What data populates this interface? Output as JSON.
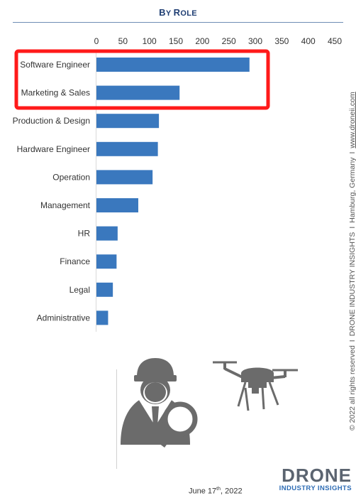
{
  "header": {
    "title_first": "B",
    "title_rest_1": "Y ",
    "title_r": "R",
    "title_rest_2": "OLE"
  },
  "chart_data": {
    "type": "bar",
    "orientation": "horizontal",
    "title": "By Role",
    "categories": [
      "Software Engineer",
      "Marketing & Sales",
      "Production & Design",
      "Hardware Engineer",
      "Operation",
      "Management",
      "HR",
      "Finance",
      "Legal",
      "Administrative"
    ],
    "values": [
      289,
      157,
      118,
      116,
      106,
      79,
      40,
      38,
      31,
      22
    ],
    "xlim": [
      0,
      450
    ],
    "xticks": [
      "0",
      "50",
      "100",
      "150",
      "200",
      "250",
      "300",
      "350",
      "400",
      "450"
    ],
    "grid": false,
    "bar_color": "#3a78be",
    "highlight": {
      "categories": [
        "Software Engineer",
        "Marketing & Sales"
      ],
      "color": "#ff1a1a"
    }
  },
  "sidebar_note": {
    "copyright": "© 2022 all rights reserved",
    "company": "DRONE INDUSTRY INSIGHTS",
    "location": "Hamburg, Germany",
    "url": "www.droneii.com",
    "separator": "I"
  },
  "footer": {
    "date_prefix": "June 17",
    "date_sup": "th",
    "date_suffix": ", 2022"
  },
  "logo": {
    "main": "DRONE",
    "sub": "INDUSTRY INSIGHTS"
  },
  "icons": [
    "person-search-icon",
    "drone-icon"
  ],
  "colors": {
    "title": "#1f3e73",
    "logo_sub": "#2f6db5",
    "icon_gray": "#6b6b6b"
  }
}
